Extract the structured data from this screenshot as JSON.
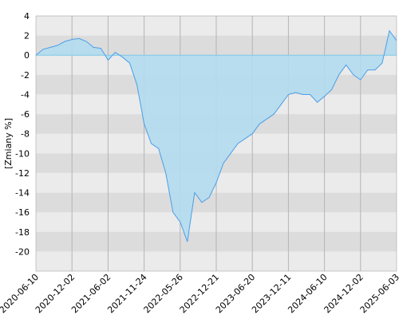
{
  "chart_data": {
    "type": "area",
    "y_label": "[Zmiany %]",
    "categories": [
      "2020-06-10",
      null,
      null,
      null,
      null,
      "2020-12-02",
      null,
      null,
      null,
      null,
      "2021-06-02",
      null,
      null,
      null,
      null,
      "2021-11-24",
      null,
      null,
      null,
      null,
      "2022-05-26",
      null,
      null,
      null,
      null,
      "2022-12-21",
      null,
      null,
      null,
      null,
      "2023-06-20",
      null,
      null,
      null,
      null,
      "2023-12-11",
      null,
      null,
      null,
      null,
      "2024-06-10",
      null,
      null,
      null,
      null,
      "2024-12-02",
      null,
      null,
      null,
      null,
      "2025-06-03"
    ],
    "series": [
      {
        "color": "#4a9ee8",
        "values": [
          0,
          0.6,
          0.8,
          1.0,
          1.4,
          1.6,
          1.7,
          1.4,
          0.8,
          0.7,
          -0.5,
          0.3,
          -0.2,
          -0.8,
          -3,
          -7,
          -9,
          -9.5,
          -12,
          -16,
          -17,
          -19,
          -14,
          -15,
          -14.5,
          -13,
          -11,
          -10,
          -9,
          -8.5,
          -8,
          -7,
          -6.5,
          -6,
          -5,
          -4,
          -3.8,
          -4,
          -4,
          -4.8,
          -4.2,
          -3.5,
          -2,
          -1,
          -2,
          -2.5,
          -1.5,
          -1.5,
          -0.8,
          2.5,
          1.5
        ]
      }
    ],
    "ylim": [
      -22,
      4
    ],
    "yticks": [
      -20,
      -18,
      -16,
      -14,
      -12,
      -10,
      -8,
      -6,
      -4,
      -2,
      0,
      2,
      4
    ],
    "grid": true
  }
}
